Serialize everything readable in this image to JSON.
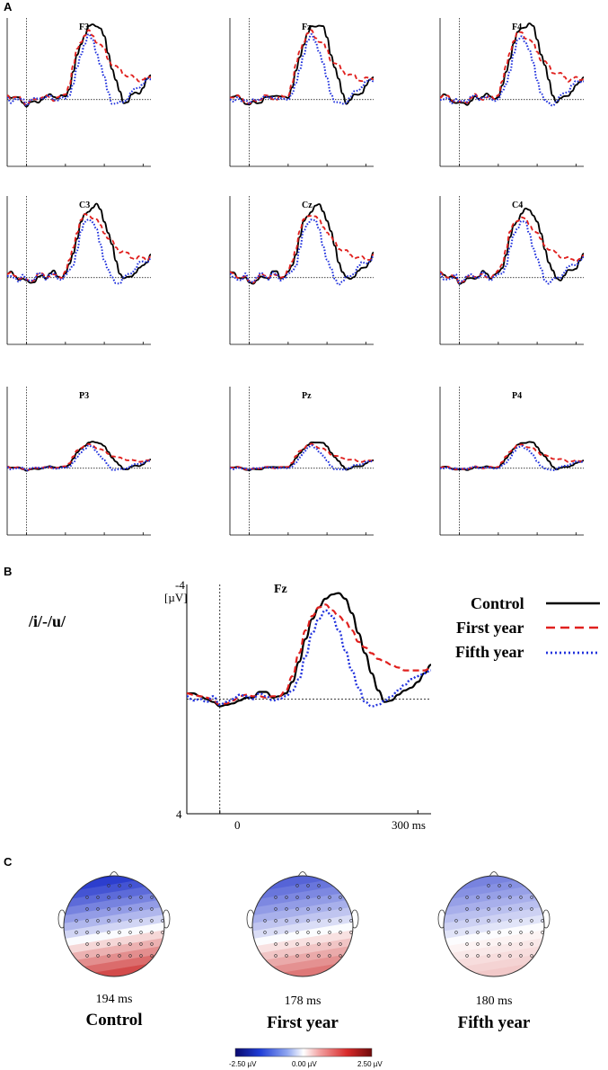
{
  "panels": {
    "a": "A",
    "b": "B",
    "c": "C"
  },
  "colors": {
    "control": "#000000",
    "first_year": "#e0201e",
    "fifth_year": "#2233dd"
  },
  "chart_data": [
    {
      "type": "line",
      "id": "A",
      "description_note": "Grid of ERP waveforms at nine electrodes",
      "x_range_ms": [
        -50,
        320
      ],
      "y_range_uV": [
        -4,
        4
      ],
      "y_inverted": true,
      "electrodes": [
        {
          "name": "F3",
          "scale": 1.0
        },
        {
          "name": "Fz",
          "scale": 1.0
        },
        {
          "name": "F4",
          "scale": 1.0
        },
        {
          "name": "C3",
          "scale": 0.95
        },
        {
          "name": "Cz",
          "scale": 0.95
        },
        {
          "name": "C4",
          "scale": 0.9
        },
        {
          "name": "P3",
          "scale": 0.35
        },
        {
          "name": "Pz",
          "scale": 0.35
        },
        {
          "name": "P4",
          "scale": 0.35
        }
      ]
    },
    {
      "type": "line",
      "id": "B",
      "title": "Fz",
      "condition": "/i/-/u/",
      "ylabel": "[µV]",
      "y_top_label": "-4",
      "y_bottom_label": "4",
      "x_tick_labels": [
        "0",
        "300 ms"
      ],
      "x_ticks": [
        0,
        300
      ],
      "ylim": [
        -4,
        4
      ],
      "xlim": [
        -50,
        320
      ],
      "y_inverted": true,
      "x": [
        -50,
        -40,
        -30,
        -20,
        -10,
        0,
        10,
        20,
        30,
        40,
        50,
        60,
        70,
        80,
        90,
        100,
        110,
        120,
        130,
        140,
        150,
        160,
        170,
        180,
        190,
        200,
        210,
        220,
        230,
        240,
        250,
        260,
        270,
        280,
        290,
        300,
        310,
        320
      ],
      "series": [
        {
          "name": "Control",
          "style": "solid",
          "values": [
            -0.2,
            -0.2,
            -0.1,
            0.0,
            0.1,
            0.25,
            0.2,
            0.15,
            0.05,
            -0.05,
            -0.05,
            -0.25,
            -0.25,
            -0.05,
            -0.1,
            -0.2,
            -0.6,
            -1.3,
            -2.1,
            -2.8,
            -3.2,
            -3.5,
            -3.65,
            -3.7,
            -3.5,
            -3.0,
            -2.3,
            -1.6,
            -0.9,
            -0.3,
            0.1,
            0.05,
            -0.15,
            -0.3,
            -0.4,
            -0.6,
            -0.9,
            -1.2
          ]
        },
        {
          "name": "First year",
          "style": "dashed",
          "values": [
            -0.2,
            -0.15,
            -0.1,
            -0.05,
            0.05,
            0.2,
            0.15,
            0.05,
            -0.1,
            -0.15,
            -0.1,
            -0.1,
            -0.05,
            -0.1,
            -0.1,
            -0.3,
            -0.8,
            -1.6,
            -2.4,
            -2.9,
            -3.2,
            -3.3,
            -3.1,
            -2.9,
            -2.7,
            -2.4,
            -2.0,
            -1.8,
            -1.6,
            -1.4,
            -1.3,
            -1.2,
            -1.1,
            -1.0,
            -1.0,
            -1.0,
            -1.0,
            -1.1
          ]
        },
        {
          "name": "Fifth year",
          "style": "dotted",
          "values": [
            -0.1,
            0.05,
            0.0,
            0.1,
            -0.1,
            0.2,
            0.1,
            0.0,
            -0.15,
            -0.1,
            0.0,
            -0.2,
            -0.1,
            0.05,
            0.0,
            -0.1,
            -0.3,
            -0.7,
            -1.5,
            -2.3,
            -2.8,
            -3.1,
            -2.9,
            -2.4,
            -1.7,
            -1.0,
            -0.4,
            0.1,
            0.25,
            0.2,
            0.05,
            -0.1,
            -0.3,
            -0.5,
            -0.7,
            -0.8,
            -0.9,
            -1.0
          ]
        }
      ]
    },
    {
      "type": "heatmap",
      "id": "C",
      "description_note": "Scalp topography maps",
      "colorbar": {
        "min_label": "-2.50 µV",
        "mid_label": "0.00 µV",
        "max_label": "2.50 µV",
        "range": [
          -2.5,
          2.5
        ]
      },
      "maps": [
        {
          "group": "Control",
          "time": "194 ms",
          "peak_neg": -2.5,
          "peak_pos": 2.0
        },
        {
          "group": "First year",
          "time": "178 ms",
          "peak_neg": -2.0,
          "peak_pos": 1.5
        },
        {
          "group": "Fifth year",
          "time": "180 ms",
          "peak_neg": -1.6,
          "peak_pos": 0.6
        }
      ]
    }
  ]
}
